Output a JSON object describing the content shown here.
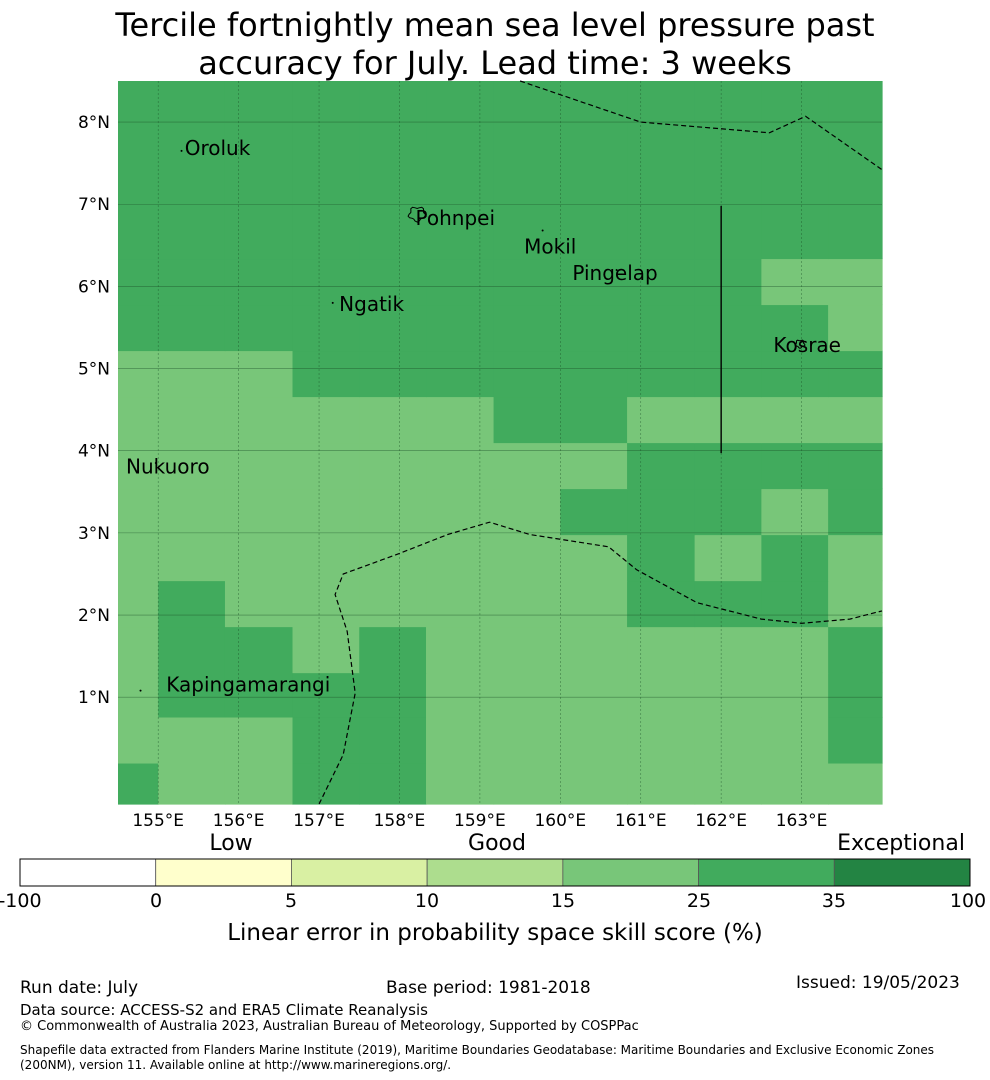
{
  "title": {
    "line1": "Tercile fortnightly mean sea level pressure past",
    "line2": "accuracy for July. Lead time: 3 weeks"
  },
  "map": {
    "lon_range": [
      154.5,
      164.0
    ],
    "lat_range": [
      -0.3,
      8.5
    ],
    "lat_ticks": [
      {
        "value": 1,
        "label": "1°N"
      },
      {
        "value": 2,
        "label": "2°N"
      },
      {
        "value": 3,
        "label": "3°N"
      },
      {
        "value": 4,
        "label": "4°N"
      },
      {
        "value": 5,
        "label": "5°N"
      },
      {
        "value": 6,
        "label": "6°N"
      },
      {
        "value": 7,
        "label": "7°N"
      },
      {
        "value": 8,
        "label": "8°N"
      }
    ],
    "lon_ticks": [
      {
        "value": 155,
        "label": "155°E"
      },
      {
        "value": 156,
        "label": "156°E"
      },
      {
        "value": 157,
        "label": "157°E"
      },
      {
        "value": 158,
        "label": "158°E"
      },
      {
        "value": 159,
        "label": "159°E"
      },
      {
        "value": 160,
        "label": "160°E"
      },
      {
        "value": 161,
        "label": "161°E"
      },
      {
        "value": 162,
        "label": "162°E"
      },
      {
        "value": 163,
        "label": "163°E"
      }
    ],
    "places": [
      {
        "name": "Oroluk",
        "lon": 155.33,
        "lat": 7.6
      },
      {
        "name": "Pohnpei",
        "lon": 158.2,
        "lat": 6.75
      },
      {
        "name": "Mokil",
        "lon": 159.55,
        "lat": 6.4
      },
      {
        "name": "Pingelap",
        "lon": 160.15,
        "lat": 6.08
      },
      {
        "name": "Ngatik",
        "lon": 157.25,
        "lat": 5.7
      },
      {
        "name": "Kosrae",
        "lon": 162.65,
        "lat": 5.2
      },
      {
        "name": "Nukuoro",
        "lon": 154.6,
        "lat": 3.72
      },
      {
        "name": "Kapingamarangi",
        "lon": 155.1,
        "lat": 1.07
      }
    ],
    "islands": [
      {
        "name": "Pohnpei",
        "lon": 158.22,
        "lat": 6.88,
        "size": 1.0
      },
      {
        "name": "Kosrae",
        "lon": 162.98,
        "lat": 5.3,
        "size": 0.55
      },
      {
        "name": "Mokil",
        "lon": 159.78,
        "lat": 6.68,
        "size": 0.1
      },
      {
        "name": "Pingelap",
        "lon": 160.7,
        "lat": 6.2,
        "size": 0.1
      },
      {
        "name": "Ngatik",
        "lon": 157.17,
        "lat": 5.8,
        "size": 0.1
      },
      {
        "name": "Oroluk",
        "lon": 155.29,
        "lat": 7.65,
        "size": 0.1
      },
      {
        "name": "Nukuoro",
        "lon": 154.97,
        "lat": 3.85,
        "size": 0.1
      },
      {
        "name": "Kapingamarangi",
        "lon": 154.78,
        "lat": 1.08,
        "size": 0.1
      }
    ],
    "colors": {
      "class_25_35": "#41ab5d",
      "class_15_25": "#78c679"
    },
    "skill_grid": {
      "classes": [
        "15-25",
        "25-35"
      ],
      "lon_edges": [
        154.5,
        155.0,
        155.83,
        156.67,
        157.5,
        158.33,
        159.17,
        160.0,
        160.83,
        161.67,
        162.5,
        163.33,
        164.0
      ],
      "lat_edges": [
        -0.3,
        0.2,
        0.76,
        1.3,
        1.86,
        2.42,
        2.98,
        3.54,
        4.1,
        4.66,
        5.22,
        5.78,
        6.34,
        8.5
      ],
      "rows_south_to_north": [
        [
          1,
          0,
          0,
          1,
          1,
          0,
          0,
          0,
          0,
          0,
          0,
          0
        ],
        [
          0,
          0,
          0,
          1,
          1,
          0,
          0,
          0,
          0,
          0,
          0,
          1
        ],
        [
          0,
          1,
          1,
          1,
          1,
          0,
          0,
          0,
          0,
          0,
          0,
          1
        ],
        [
          0,
          1,
          1,
          0,
          1,
          0,
          0,
          0,
          0,
          0,
          0,
          1
        ],
        [
          0,
          1,
          0,
          0,
          0,
          0,
          0,
          0,
          1,
          1,
          1,
          0
        ],
        [
          0,
          0,
          0,
          0,
          0,
          0,
          0,
          0,
          1,
          0,
          1,
          0
        ],
        [
          0,
          0,
          0,
          0,
          0,
          0,
          0,
          1,
          1,
          1,
          0,
          1
        ],
        [
          0,
          0,
          0,
          0,
          0,
          0,
          0,
          0,
          1,
          1,
          1,
          1
        ],
        [
          0,
          0,
          0,
          0,
          0,
          0,
          1,
          1,
          0,
          0,
          0,
          0
        ],
        [
          0,
          0,
          0,
          1,
          1,
          1,
          1,
          1,
          1,
          1,
          1,
          1
        ],
        [
          1,
          1,
          1,
          1,
          1,
          1,
          1,
          1,
          1,
          1,
          1,
          0
        ],
        [
          1,
          1,
          1,
          1,
          1,
          1,
          1,
          1,
          1,
          1,
          0,
          0
        ],
        [
          1,
          1,
          1,
          1,
          1,
          1,
          1,
          1,
          1,
          1,
          1,
          1
        ]
      ]
    },
    "eez_lines": [
      [
        [
          159.5,
          8.5
        ],
        [
          161.0,
          8.0
        ],
        [
          162.6,
          7.87
        ],
        [
          163.05,
          8.07
        ],
        [
          164.0,
          7.42
        ]
      ],
      [
        [
          157.0,
          -0.3
        ],
        [
          157.3,
          0.3
        ],
        [
          157.45,
          1.05
        ],
        [
          157.35,
          1.8
        ],
        [
          157.2,
          2.25
        ],
        [
          157.3,
          2.5
        ],
        [
          158.0,
          2.75
        ],
        [
          158.6,
          2.98
        ],
        [
          159.12,
          3.13
        ],
        [
          159.62,
          2.98
        ],
        [
          160.6,
          2.83
        ],
        [
          160.95,
          2.55
        ],
        [
          161.7,
          2.15
        ],
        [
          162.5,
          1.95
        ],
        [
          163.0,
          1.9
        ],
        [
          163.6,
          1.95
        ],
        [
          164.0,
          2.05
        ]
      ]
    ],
    "boundary_line": {
      "lon": 162.0,
      "lat_from": 3.97,
      "lat_to": 6.98
    }
  },
  "legend": {
    "categories": [
      {
        "label": "Low",
        "at": 2
      },
      {
        "label": "Good",
        "at": 4
      },
      {
        "label": "Exceptional",
        "at": 7
      }
    ],
    "bins": [
      {
        "from": -100,
        "to": 0,
        "color": "#ffffff"
      },
      {
        "from": 0,
        "to": 5,
        "color": "#ffffcc"
      },
      {
        "from": 5,
        "to": 10,
        "color": "#d9f0a3"
      },
      {
        "from": 10,
        "to": 15,
        "color": "#addd8e"
      },
      {
        "from": 15,
        "to": 25,
        "color": "#78c679"
      },
      {
        "from": 25,
        "to": 35,
        "color": "#41ab5d"
      },
      {
        "from": 35,
        "to": 100,
        "color": "#238443"
      }
    ],
    "ticks": [
      "-100",
      "0",
      "5",
      "10",
      "15",
      "25",
      "35",
      "100"
    ],
    "label": "Linear error in probability space skill score (%)"
  },
  "footer": {
    "run_date": "Run date: July",
    "base_period": "Base period: 1981-2018",
    "issued": "Issued: 19/05/2023",
    "data_source": "Data source: ACCESS-S2 and ERA5 Climate Reanalysis",
    "copyright": "© Commonwealth of Australia 2023, Australian Bureau of Meteorology, Supported by COSPPac",
    "shapefile": "Shapefile data extracted from Flanders Marine Institute (2019), Maritime Boundaries Geodatabase: Maritime Boundaries and Exclusive Economic Zones (200NM), version 11. Available online at http://www.marineregions.org/."
  }
}
